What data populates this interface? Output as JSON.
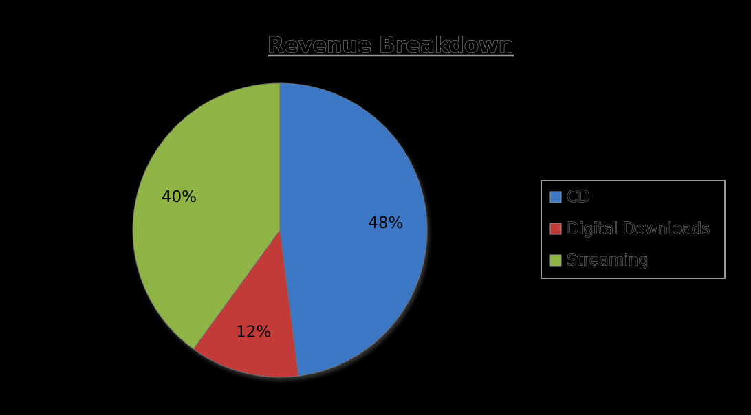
{
  "chart_data": {
    "type": "pie",
    "title": "Revenue Breakdown",
    "categories": [
      "CD",
      "Digital Downloads",
      "Streaming"
    ],
    "values": [
      48,
      12,
      40
    ],
    "labels": [
      "48%",
      "12%",
      "40%"
    ],
    "colors": [
      "#3d78c6",
      "#c23b38",
      "#8fb444"
    ],
    "legend_position": "right"
  }
}
